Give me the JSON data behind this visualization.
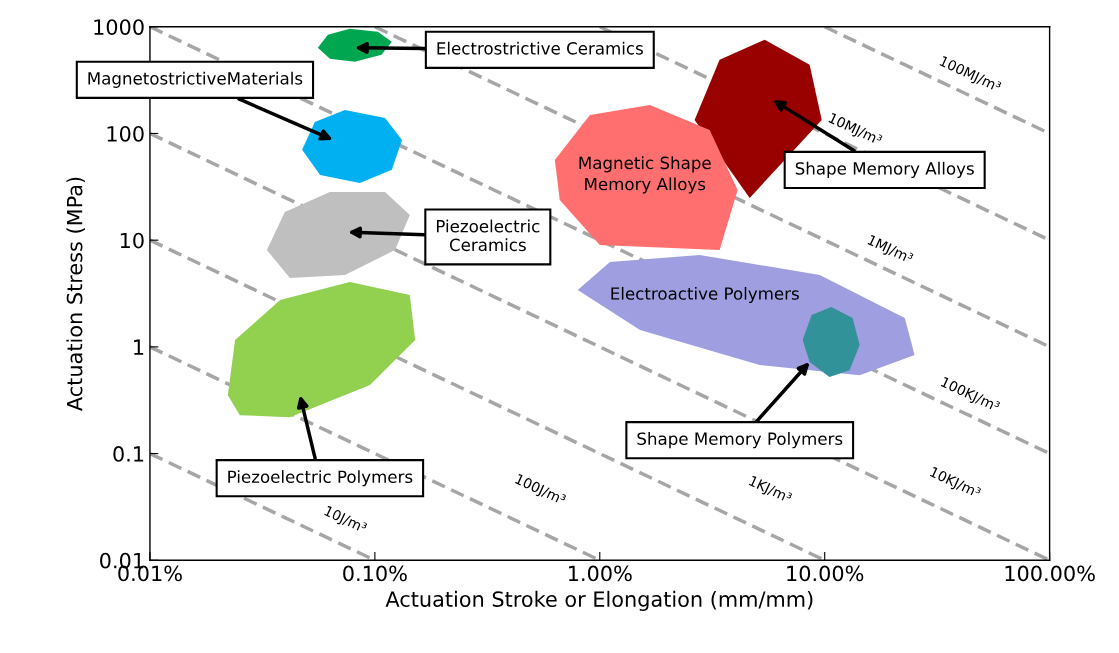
{
  "chart_data": {
    "type": "area",
    "xlabel": "Actuation Stroke or Elongation (mm/mm)",
    "ylabel": "Actuation Stress (MPa)",
    "log": "xy",
    "grid": false,
    "xlim": [
      0.01,
      100
    ],
    "ylim": [
      0.01,
      1000
    ],
    "xticks": [
      {
        "value": 0.01,
        "label": "0.01%"
      },
      {
        "value": 0.1,
        "label": "0.10%"
      },
      {
        "value": 1,
        "label": "1.00%"
      },
      {
        "value": 10,
        "label": "10.00%"
      },
      {
        "value": 100,
        "label": "100.00%"
      }
    ],
    "yticks": [
      0.01,
      0.1,
      1,
      10,
      100,
      1000
    ],
    "series": [
      {
        "type": "line",
        "color": "#a6a6a6",
        "line_style": "dashed",
        "x": [
          0.01,
          0.1
        ],
        "values": [
          0.1,
          0.01
        ]
      },
      {
        "type": "line",
        "color": "#a6a6a6",
        "line_style": "dashed",
        "x": [
          0.01,
          1
        ],
        "values": [
          1,
          0.01
        ]
      },
      {
        "type": "line",
        "color": "#a6a6a6",
        "line_style": "dashed",
        "x": [
          0.01,
          10
        ],
        "values": [
          10,
          0.01
        ]
      },
      {
        "type": "line",
        "color": "#a6a6a6",
        "line_style": "dashed",
        "x": [
          0.01,
          100
        ],
        "values": [
          100,
          0.01
        ]
      },
      {
        "type": "line",
        "color": "#a6a6a6",
        "line_style": "dashed",
        "x": [
          0.01,
          100
        ],
        "values": [
          1000,
          0.1
        ]
      },
      {
        "type": "line",
        "color": "#a6a6a6",
        "line_style": "dashed",
        "x": [
          0.1,
          100
        ],
        "values": [
          1000,
          1
        ]
      },
      {
        "type": "line",
        "color": "#a6a6a6",
        "line_style": "dashed",
        "x": [
          1,
          100
        ],
        "values": [
          1000,
          10
        ]
      },
      {
        "type": "line",
        "color": "#a6a6a6",
        "line_style": "dashed",
        "x": [
          10,
          100
        ],
        "values": [
          1000,
          100
        ]
      },
      {
        "color": "#00a650",
        "x": [
          0.0558,
          0.0618,
          0.0774,
          0.103,
          0.119,
          0.107,
          0.0815,
          0.0631
        ],
        "values": [
          635,
          841,
          960,
          898,
          723,
          546,
          470,
          501
        ]
      },
      {
        "color": "#00b0f0",
        "x": [
          0.0475,
          0.0541,
          0.0736,
          0.111,
          0.132,
          0.119,
          0.0857,
          0.0571
        ],
        "values": [
          70.2,
          128,
          166,
          140,
          87,
          45.6,
          34.4,
          40.9
        ]
      },
      {
        "color": "#bfbfbf",
        "x": [
          0.0331,
          0.0398,
          0.0631,
          0.111,
          0.143,
          0.123,
          0.0736,
          0.0419
        ],
        "values": [
          8.09,
          18.4,
          28.3,
          28.3,
          17.2,
          8.09,
          4.72,
          4.42
        ]
      },
      {
        "color": "#92d050",
        "x": [
          0.0222,
          0.0239,
          0.0379,
          0.0774,
          0.143,
          0.151,
          0.0951,
          0.0419,
          0.0251
        ],
        "values": [
          0.353,
          1.16,
          2.75,
          4.06,
          3.06,
          1.16,
          0.439,
          0.219,
          0.229
        ]
      },
      {
        "color": "#990000",
        "x": [
          2.64,
          3.41,
          5.41,
          8.57,
          9.7,
          4.64
        ],
        "values": [
          134,
          490,
          755,
          440,
          134,
          24.9
        ]
      },
      {
        "color": "#ff6f6f",
        "x": [
          0.631,
          0.904,
          1.67,
          3.08,
          4.1,
          3.41,
          1.0,
          0.664
        ],
        "values": [
          56.5,
          149,
          185,
          108,
          29.6,
          8.09,
          9.02,
          23.8
        ]
      },
      {
        "color": "#9e9ee0",
        "x": [
          0.798,
          1.11,
          2.78,
          9.5,
          22.7,
          25.1,
          14.3,
          5.14,
          1.51
        ],
        "values": [
          3.41,
          6.25,
          7.26,
          4.72,
          1.86,
          0.838,
          0.543,
          0.675,
          1.44
        ]
      },
      {
        "color": "#31929a",
        "x": [
          7.98,
          8.75,
          10.7,
          13.3,
          14.3,
          12.9,
          10.5,
          8.57
        ],
        "values": [
          1.16,
          1.99,
          2.36,
          1.86,
          1.04,
          0.605,
          0.521,
          0.72
        ]
      }
    ],
    "annotations": [
      "Electrostrictive Ceramics",
      "MagnetostrictiveMaterials",
      {
        "text": "Piezoelectric\nCeramics",
        "x": 0.0759,
        "y": 11.9
      },
      "Piezoelectric Polymers",
      "Magnetic Shape\nMemory Alloys",
      "Electroactive Polymers",
      "Shape Memory Alloys",
      {
        "text": "Shape Memory Polymers",
        "x": 8.57,
        "y": 0.72
      },
      "10J/m³",
      "100J/m³",
      "1KJ/m³",
      "10KJ/m³",
      "100KJ/m³",
      "1MJ/m³",
      "10MJ/m³",
      "100MJ/m³"
    ]
  }
}
